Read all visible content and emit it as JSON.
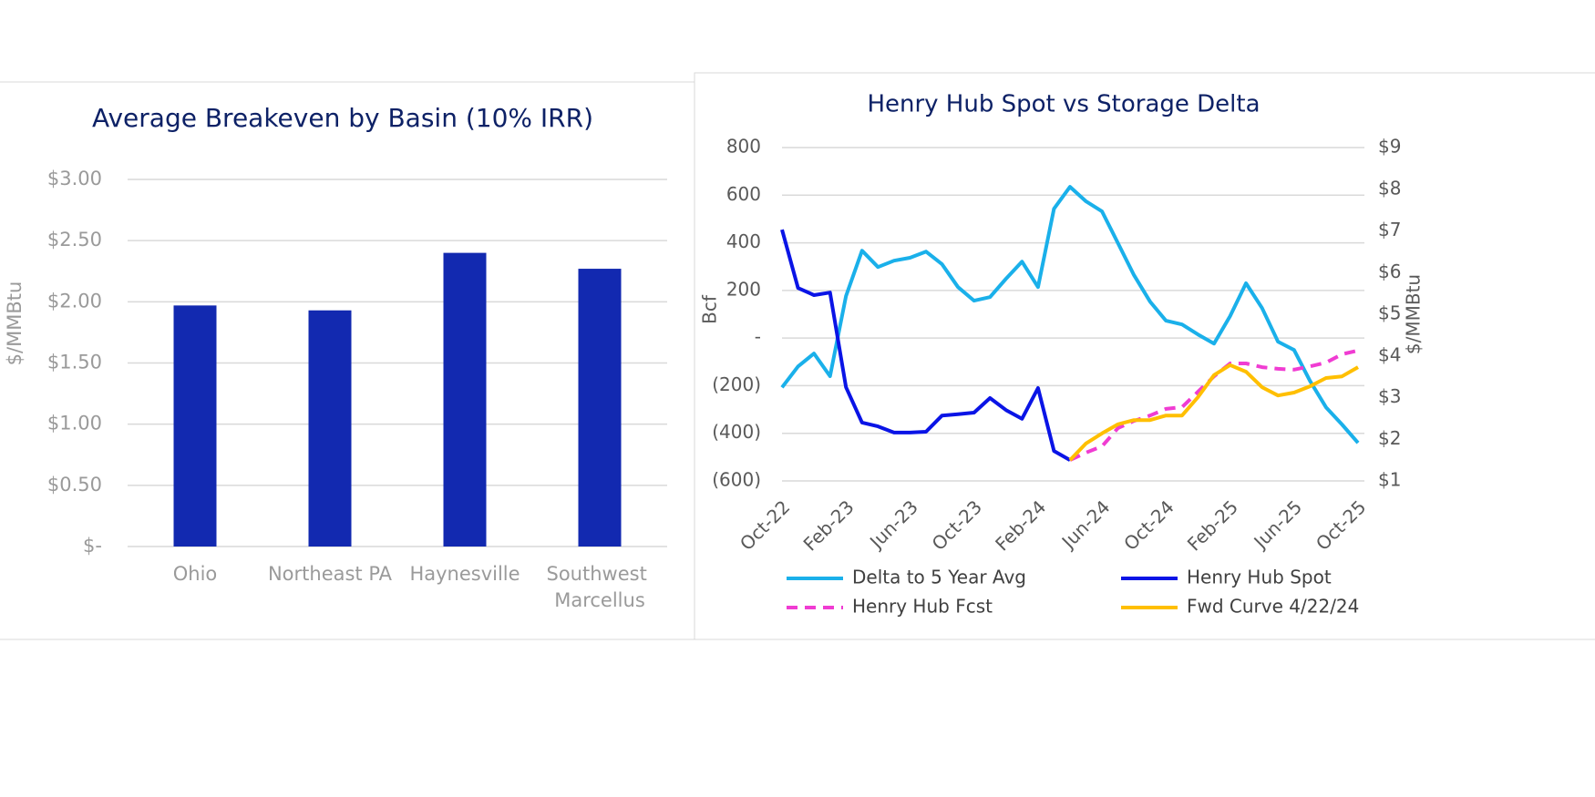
{
  "chart_data": [
    {
      "type": "bar",
      "title": "Average Breakeven by Basin (10% IRR)",
      "ylabel": "$/MMBtu",
      "categories": [
        "Ohio",
        "Northeast PA",
        "Haynesville",
        "Southwest Marcellus"
      ],
      "values": [
        1.97,
        1.93,
        2.4,
        2.27
      ],
      "color": "#1229b0",
      "ylim": [
        0,
        3
      ],
      "yticks": [
        {
          "value": 0,
          "label": "$-"
        },
        {
          "value": 0.5,
          "label": "$0.50"
        },
        {
          "value": 1,
          "label": "$1.00"
        },
        {
          "value": 1.5,
          "label": "$1.50"
        },
        {
          "value": 2,
          "label": "$2.00"
        },
        {
          "value": 2.5,
          "label": "$2.50"
        },
        {
          "value": 3,
          "label": "$3.00"
        }
      ],
      "grid": true
    },
    {
      "type": "line",
      "title": "Henry Hub Spot vs Storage Delta",
      "ylabel": "Bcf",
      "y2label": "$/MMBtu",
      "categories": [
        "Oct-22",
        null,
        null,
        null,
        "Feb-23",
        null,
        null,
        null,
        "Jun-23",
        null,
        null,
        null,
        "Oct-23",
        null,
        null,
        null,
        "Feb-24",
        null,
        null,
        null,
        "Jun-24",
        null,
        null,
        null,
        "Oct-24",
        null,
        null,
        null,
        "Feb-25",
        null,
        null,
        null,
        "Jun-25",
        null,
        null,
        null,
        "Oct-25"
      ],
      "series": [
        {
          "name": "Delta to 5 Year Avg",
          "color": "#1ab0ea",
          "dashed": false,
          "axis": "y",
          "values": [
            -207,
            -119,
            -65,
            -160,
            176,
            367,
            298,
            325,
            337,
            363,
            310,
            214,
            157,
            172,
            249,
            321,
            214,
            543,
            635,
            574,
            532,
            398,
            264,
            153,
            73,
            57,
            15,
            -23,
            92,
            230,
            126,
            -15,
            -50,
            -180,
            -291,
            -363,
            -440
          ]
        },
        {
          "name": "Henry Hub Spot",
          "color": "#0a14e6",
          "dashed": false,
          "axis": "y2",
          "values": [
            7.03,
            5.63,
            5.46,
            5.52,
            3.25,
            2.4,
            2.31,
            2.16,
            2.16,
            2.18,
            2.57,
            2.6,
            2.64,
            2.99,
            2.7,
            2.49,
            3.23,
            1.72,
            1.5,
            null,
            null,
            null,
            null,
            null,
            null,
            null,
            null,
            null,
            null,
            null,
            null,
            null,
            null,
            null,
            null,
            null,
            null
          ]
        },
        {
          "name": "Henry Hub Fcst",
          "color": "#f03cd2",
          "dashed": true,
          "axis": "y2",
          "values": [
            null,
            null,
            null,
            null,
            null,
            null,
            null,
            null,
            null,
            null,
            null,
            null,
            null,
            null,
            null,
            null,
            null,
            null,
            1.5,
            1.68,
            1.83,
            2.27,
            2.44,
            2.57,
            2.73,
            2.77,
            3.14,
            3.51,
            3.82,
            3.82,
            3.73,
            3.69,
            3.67,
            3.75,
            3.84,
            4.04,
            4.13
          ]
        },
        {
          "name": "Fwd Curve 4/22/24",
          "color": "#ffbf00",
          "dashed": false,
          "axis": "y2",
          "values": [
            null,
            null,
            null,
            null,
            null,
            null,
            null,
            null,
            null,
            null,
            null,
            null,
            null,
            null,
            null,
            null,
            null,
            null,
            1.5,
            1.9,
            2.14,
            2.36,
            2.46,
            2.46,
            2.57,
            2.57,
            3.01,
            3.54,
            3.78,
            3.62,
            3.25,
            3.05,
            3.12,
            3.27,
            3.47,
            3.51,
            3.73
          ]
        }
      ],
      "ylim": [
        -600,
        800
      ],
      "yticks": [
        {
          "value": -600,
          "label": "(600)"
        },
        {
          "value": -400,
          "label": "(400)"
        },
        {
          "value": -200,
          "label": "(200)"
        },
        {
          "value": 0,
          "label": "-"
        },
        200,
        400,
        600,
        800
      ],
      "y2lim": [
        1,
        9
      ],
      "y2ticks": [
        {
          "value": 1,
          "label": "$1"
        },
        {
          "value": 2,
          "label": "$2"
        },
        {
          "value": 3,
          "label": "$3"
        },
        {
          "value": 4,
          "label": "$4"
        },
        {
          "value": 5,
          "label": "$5"
        },
        {
          "value": 6,
          "label": "$6"
        },
        {
          "value": 7,
          "label": "$7"
        },
        {
          "value": 8,
          "label": "$8"
        },
        {
          "value": 9,
          "label": "$9"
        }
      ],
      "grid": true,
      "legend": "bottom"
    }
  ]
}
